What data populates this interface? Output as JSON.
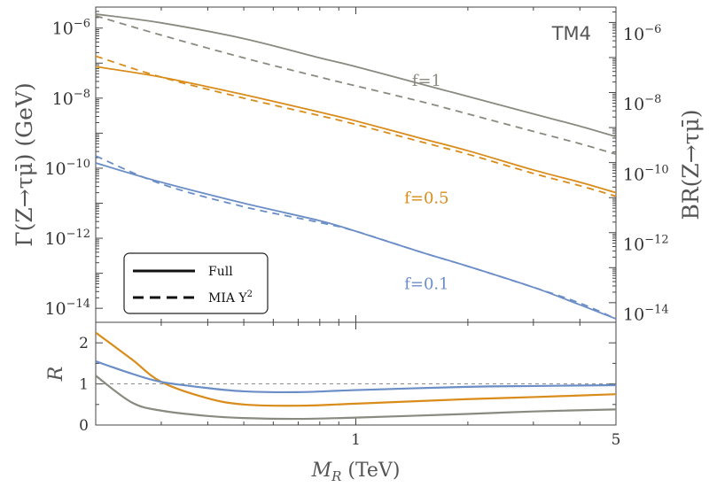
{
  "chart_data": {
    "type": "line",
    "title": "",
    "annotation": "TM4",
    "xlabel_symbol": "M",
    "xlabel_sub": "R",
    "xlabel_unit": " (TeV)",
    "ylabel_left": "Γ(Z→τμ̄) (GeV)",
    "ylabel_right": "BR(Z→τμ̄)",
    "xscale": "log",
    "xlim": [
      0.2,
      5
    ],
    "x_ticks": [
      {
        "value": 1,
        "label": "1"
      },
      {
        "value": 5,
        "label": "5"
      }
    ],
    "top_panel": {
      "yscale": "log",
      "ylim_exp": [
        -14.4,
        -5.4
      ],
      "left_ticks": [
        {
          "exp": -6,
          "label": "10",
          "sup": "−6"
        },
        {
          "exp": -8,
          "label": "10",
          "sup": "−8"
        },
        {
          "exp": -10,
          "label": "10",
          "sup": "−10"
        },
        {
          "exp": -12,
          "label": "10",
          "sup": "−12"
        },
        {
          "exp": -14,
          "label": "10",
          "sup": "−14"
        }
      ],
      "right_ticks": [
        {
          "exp": -6,
          "label": "10",
          "sup": "−6"
        },
        {
          "exp": -8,
          "label": "10",
          "sup": "−8"
        },
        {
          "exp": -10,
          "label": "10",
          "sup": "−10"
        },
        {
          "exp": -12,
          "label": "10",
          "sup": "−12"
        },
        {
          "exp": -14,
          "label": "10",
          "sup": "−14"
        }
      ],
      "right_offset_exp": -0.16,
      "series": [
        {
          "name": "f=1 Full",
          "style": "solid",
          "color": "#8a8a80",
          "x": [
            0.2,
            0.3,
            0.5,
            0.8,
            1.0,
            1.5,
            2.0,
            3.0,
            4.0,
            5.0
          ],
          "log10_y": [
            -5.6,
            -5.85,
            -6.3,
            -6.85,
            -7.1,
            -7.6,
            -7.95,
            -8.45,
            -8.8,
            -9.1
          ]
        },
        {
          "name": "f=1 MIA Y^2",
          "style": "dashed",
          "color": "#8a8a80",
          "x": [
            0.2,
            0.3,
            0.5,
            0.8,
            1.0,
            1.5,
            2.0,
            3.0,
            4.0,
            5.0
          ],
          "log10_y": [
            -5.65,
            -6.2,
            -6.85,
            -7.4,
            -7.65,
            -8.1,
            -8.45,
            -8.95,
            -9.3,
            -9.6
          ]
        },
        {
          "name": "f=0.5 Full",
          "style": "solid",
          "color": "#d98c1a",
          "x": [
            0.2,
            0.3,
            0.5,
            0.8,
            1.0,
            1.5,
            2.0,
            3.0,
            4.0,
            5.0
          ],
          "log10_y": [
            -7.1,
            -7.4,
            -7.9,
            -8.4,
            -8.65,
            -9.15,
            -9.5,
            -10.05,
            -10.4,
            -10.7
          ]
        },
        {
          "name": "f=0.5 MIA Y^2",
          "style": "dashed",
          "color": "#d98c1a",
          "x": [
            0.2,
            0.3,
            0.5,
            0.8,
            1.0,
            1.5,
            2.0,
            3.0,
            4.0,
            5.0
          ],
          "log10_y": [
            -6.8,
            -7.4,
            -8.0,
            -8.5,
            -8.75,
            -9.25,
            -9.6,
            -10.15,
            -10.5,
            -10.8
          ]
        },
        {
          "name": "f=0.1 Full",
          "style": "solid",
          "color": "#6b8ec7",
          "x": [
            0.2,
            0.3,
            0.5,
            0.8,
            1.0,
            1.5,
            2.0,
            3.0,
            4.0,
            5.0
          ],
          "log10_y": [
            -9.85,
            -10.4,
            -11.0,
            -11.5,
            -11.8,
            -12.4,
            -12.8,
            -13.4,
            -13.9,
            -14.3
          ]
        },
        {
          "name": "f=0.1 MIA Y^2",
          "style": "dashed",
          "color": "#6b8ec7",
          "x": [
            0.2,
            0.3,
            0.5,
            0.8,
            1.0,
            1.5,
            2.0,
            3.0,
            4.0,
            5.0
          ],
          "log10_y": [
            -9.65,
            -10.45,
            -11.1,
            -11.55,
            -11.8,
            -12.4,
            -12.8,
            -13.4,
            -13.85,
            -14.3
          ]
        }
      ],
      "curve_labels": [
        {
          "text": "f=1",
          "x": 1.55,
          "log10_y": -7.65,
          "color": "#8a8a80"
        },
        {
          "text": "f=0.5",
          "x": 1.55,
          "log10_y": -11.0,
          "color": "#d98c1a"
        },
        {
          "text": "f=0.1",
          "x": 1.55,
          "log10_y": -13.45,
          "color": "#6b8ec7"
        }
      ],
      "legend": {
        "position": "bottom-left",
        "entries": [
          {
            "label": "Full",
            "style": "solid"
          },
          {
            "label": "MIA Y",
            "sup": "2",
            "style": "dashed"
          }
        ]
      }
    },
    "bottom_panel": {
      "ylabel": "R",
      "ylim": [
        0,
        2.5
      ],
      "y_ticks": [
        {
          "value": 0,
          "label": "0"
        },
        {
          "value": 1,
          "label": "1"
        },
        {
          "value": 2,
          "label": "2"
        }
      ],
      "reference_line": 1,
      "series": [
        {
          "name": "f=0.5",
          "color": "#d98c1a",
          "x": [
            0.2,
            0.25,
            0.3,
            0.4,
            0.5,
            0.7,
            1.0,
            2.0,
            3.0,
            5.0
          ],
          "y": [
            2.25,
            1.6,
            1.05,
            0.65,
            0.5,
            0.47,
            0.52,
            0.63,
            0.68,
            0.75
          ]
        },
        {
          "name": "f=0.1",
          "color": "#6b8ec7",
          "x": [
            0.2,
            0.25,
            0.3,
            0.4,
            0.5,
            0.7,
            1.0,
            2.0,
            3.0,
            5.0
          ],
          "y": [
            1.55,
            1.25,
            1.05,
            0.9,
            0.82,
            0.8,
            0.85,
            0.93,
            0.95,
            0.97
          ]
        },
        {
          "name": "f=1",
          "color": "#8a8a80",
          "x": [
            0.2,
            0.25,
            0.3,
            0.4,
            0.5,
            0.7,
            1.0,
            2.0,
            3.0,
            5.0
          ],
          "y": [
            1.2,
            0.55,
            0.35,
            0.22,
            0.17,
            0.15,
            0.18,
            0.27,
            0.33,
            0.38
          ]
        }
      ]
    }
  }
}
